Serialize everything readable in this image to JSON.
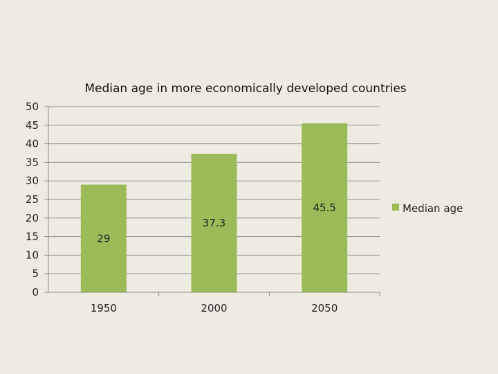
{
  "chart_data": {
    "type": "bar",
    "title": "Median age in more economically developed countries",
    "categories": [
      "1950",
      "2000",
      "2050"
    ],
    "series": [
      {
        "name": "Median age",
        "values": [
          29,
          37.3,
          45.5
        ]
      }
    ],
    "data_labels": [
      "29",
      "37.3",
      "45.5"
    ],
    "ylim": [
      0,
      50
    ],
    "yticks": [
      0,
      5,
      10,
      15,
      20,
      25,
      30,
      35,
      40,
      45,
      50
    ],
    "grid": true,
    "legend_position": "right",
    "colors": {
      "bar": "#9bbb59",
      "grid": "#8c8c8c",
      "axis": "#8c8c8c",
      "background": "#eeebe1"
    }
  }
}
